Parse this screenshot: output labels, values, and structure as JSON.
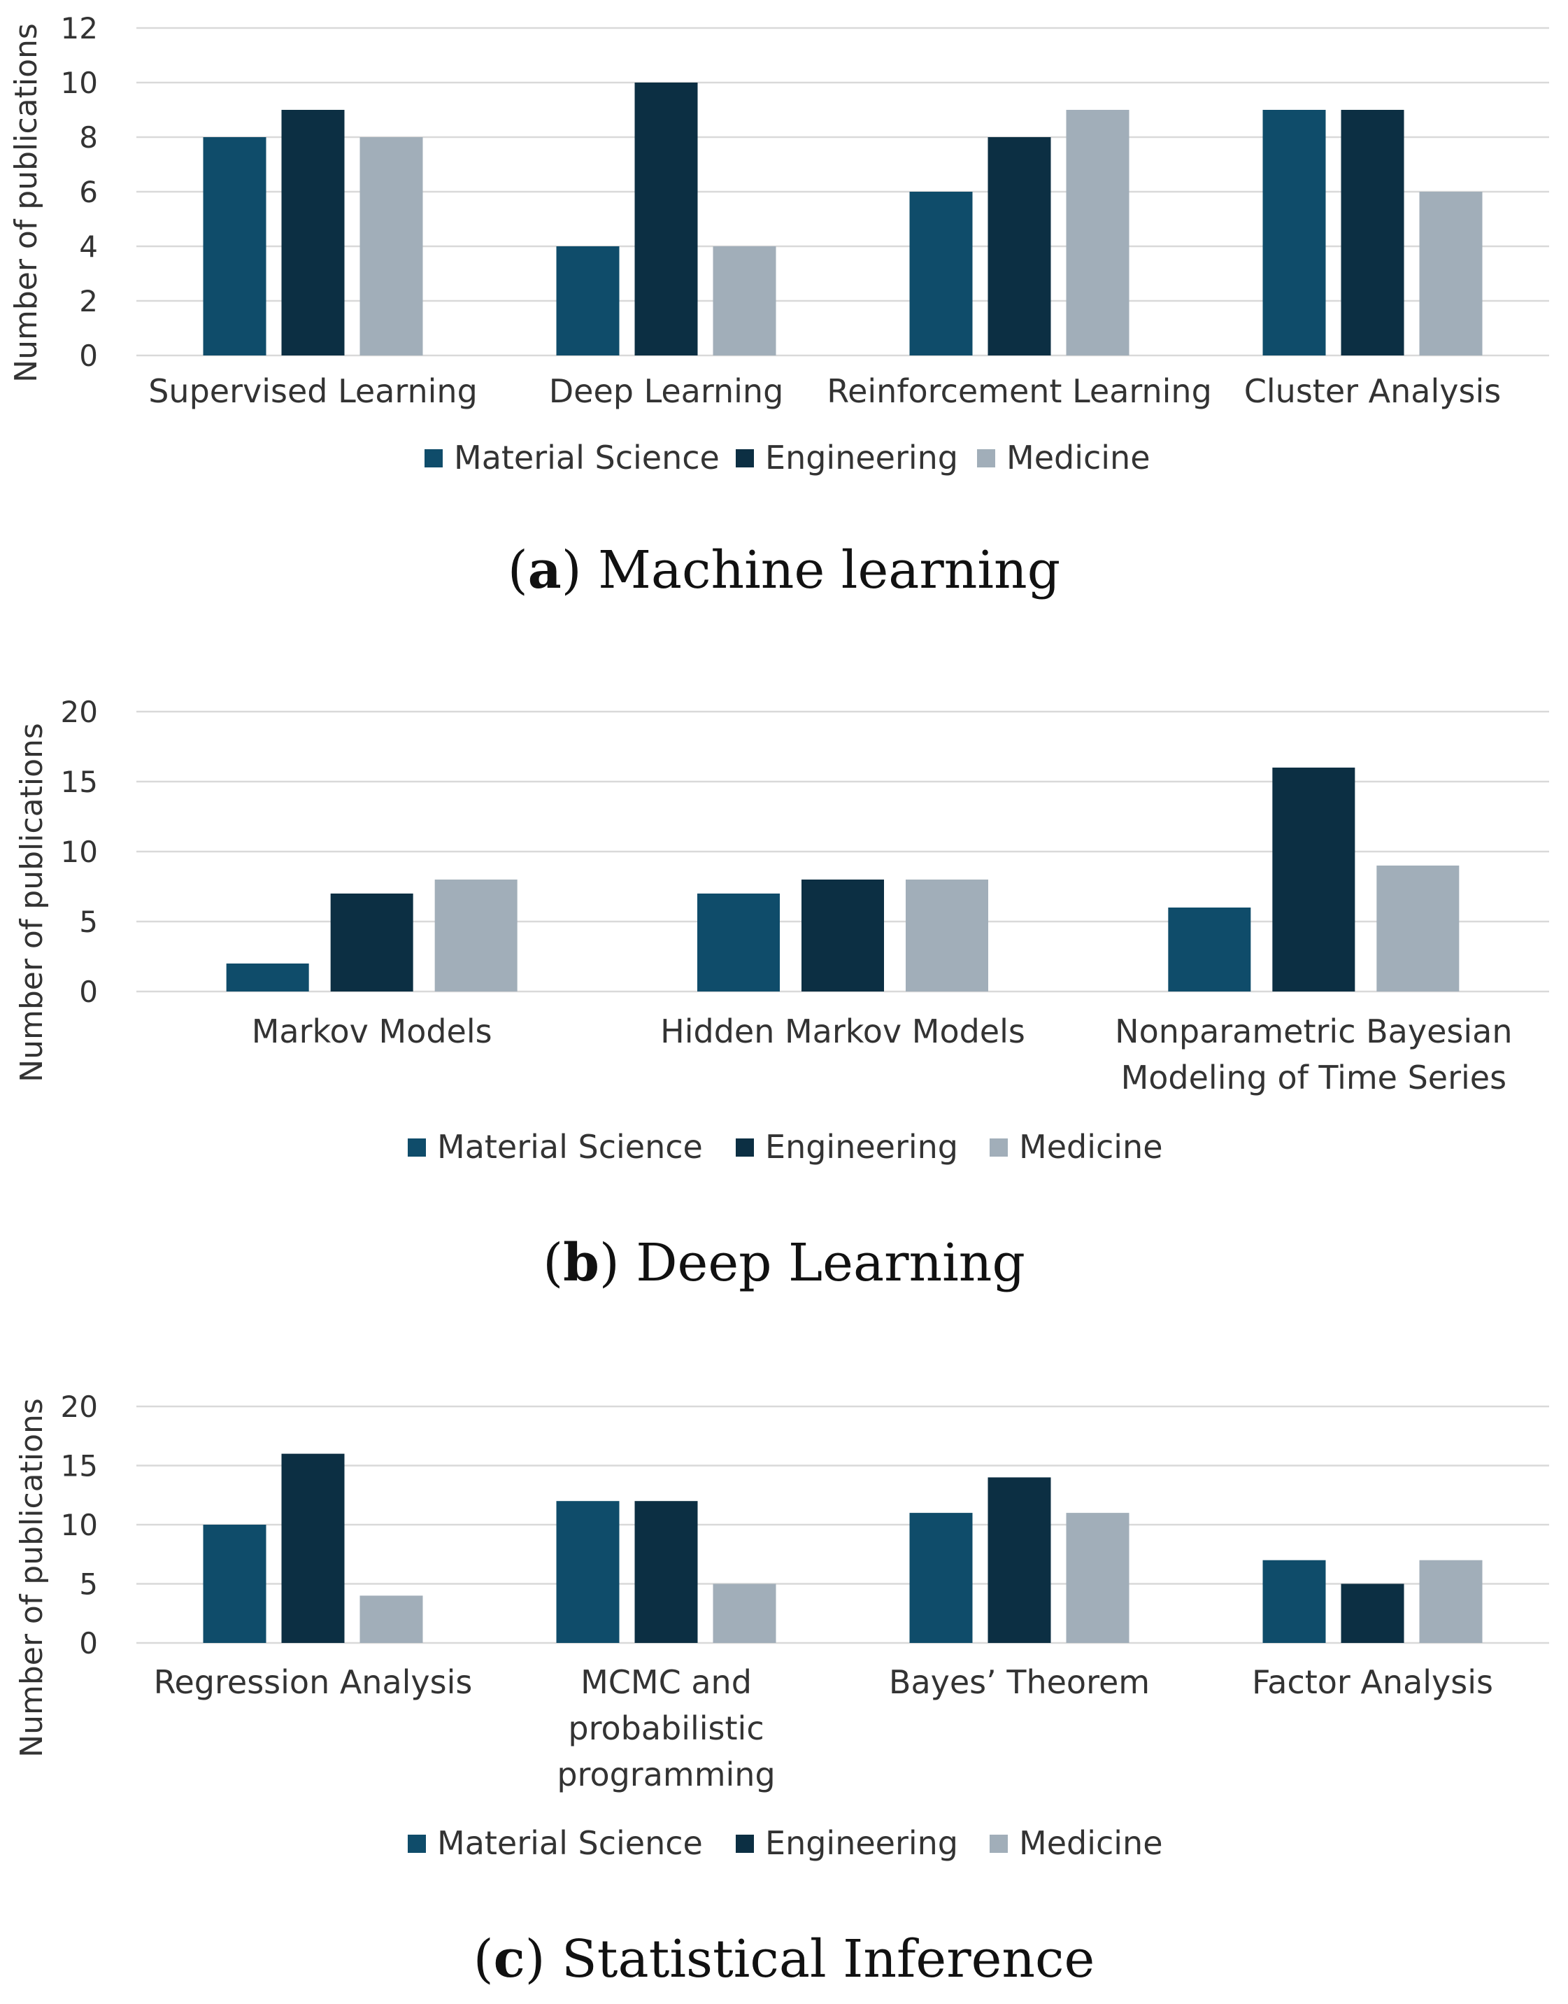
{
  "colors": {
    "material_science": "#0f4c6a",
    "engineering": "#0c2f43",
    "medicine": "#a1aeb9",
    "grid": "#d9d9d9",
    "text": "#333333"
  },
  "chart_data": [
    {
      "type": "bar",
      "panel": "a",
      "caption_label": "a",
      "caption_text": "Machine learning",
      "ylabel": "Number of publications",
      "ylim": [
        0,
        12
      ],
      "yticks": [
        0,
        2,
        4,
        6,
        8,
        10,
        12
      ],
      "categories": [
        [
          "Supervised Learning"
        ],
        [
          "Deep Learning"
        ],
        [
          "Reinforcement Learning"
        ],
        [
          "Cluster Analysis"
        ]
      ],
      "series": [
        {
          "name": "Material Science",
          "color_key": "material_science",
          "values": [
            8,
            4,
            6,
            9
          ]
        },
        {
          "name": "Engineering",
          "color_key": "engineering",
          "values": [
            9,
            10,
            8,
            9
          ]
        },
        {
          "name": "Medicine",
          "color_key": "medicine",
          "values": [
            8,
            4,
            9,
            6
          ]
        }
      ],
      "legend_position": "bottom"
    },
    {
      "type": "bar",
      "panel": "b",
      "caption_label": "b",
      "caption_text": "Deep Learning",
      "ylabel": "Number of publications",
      "ylim": [
        0,
        20
      ],
      "yticks": [
        0,
        5,
        10,
        15,
        20
      ],
      "categories": [
        [
          "Markov Models"
        ],
        [
          "Hidden Markov Models"
        ],
        [
          "Nonparametric Bayesian",
          "Modeling of Time Series"
        ]
      ],
      "series": [
        {
          "name": "Material Science",
          "color_key": "material_science",
          "values": [
            2,
            7,
            6
          ]
        },
        {
          "name": "Engineering",
          "color_key": "engineering",
          "values": [
            7,
            8,
            16
          ]
        },
        {
          "name": "Medicine",
          "color_key": "medicine",
          "values": [
            8,
            8,
            9
          ]
        }
      ],
      "legend_position": "bottom"
    },
    {
      "type": "bar",
      "panel": "c",
      "caption_label": "c",
      "caption_text": "Statistical Inference",
      "ylabel": "Number of publications",
      "ylim": [
        0,
        20
      ],
      "yticks": [
        0,
        5,
        10,
        15,
        20
      ],
      "categories": [
        [
          "Regression Analysis"
        ],
        [
          "MCMC and",
          "probabilistic",
          "programming"
        ],
        [
          "Bayes’ Theorem"
        ],
        [
          "Factor Analysis"
        ]
      ],
      "series": [
        {
          "name": "Material Science",
          "color_key": "material_science",
          "values": [
            10,
            12,
            11,
            7
          ]
        },
        {
          "name": "Engineering",
          "color_key": "engineering",
          "values": [
            16,
            12,
            14,
            5
          ]
        },
        {
          "name": "Medicine",
          "color_key": "medicine",
          "values": [
            4,
            5,
            11,
            7
          ]
        }
      ],
      "legend_position": "bottom"
    }
  ]
}
